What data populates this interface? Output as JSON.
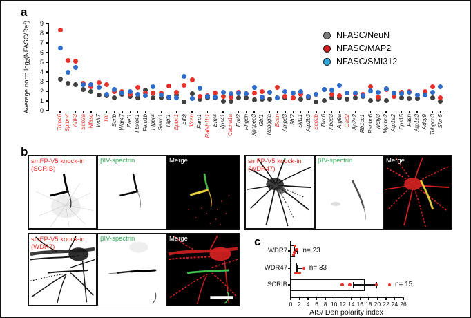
{
  "panels": {
    "a": "a",
    "b": "b",
    "c": "c"
  },
  "colors": {
    "dot_gray": "#404040",
    "dot_red": "#e8302a",
    "dot_blue": "#2d6ccb",
    "legend_gray": "#7d7d7d",
    "legend_red": "#cf1c1c",
    "legend_blue": "#35aadf",
    "label_red": "#e8302a",
    "label_green": "#2eae54",
    "merge_white": "#ffffff"
  },
  "chart_data": [
    {
      "type": "scatter",
      "ylabel_pre": "Average norm log",
      "ylabel_sub": "2",
      "ylabel_post": "(NFASC/Ref)",
      "ylim": [
        0,
        9
      ],
      "yticks": [
        0,
        1,
        2,
        3,
        4,
        5,
        6,
        7,
        8,
        9
      ],
      "categories": [
        "Trim46",
        "Sptbn4",
        "Ank3",
        "Scn2a",
        "Nfasc",
        "Wdr7",
        "Tnr",
        "Scrib",
        "Wdr47",
        "Zzef1",
        "Fbxo41",
        "Fem1b",
        "Plppr4",
        "Sarm1",
        "Tapt1",
        "Epb41",
        "Eif3j",
        "Vcan",
        "Farp1",
        "Pafah1b1",
        "Eml4",
        "Vps41",
        "Cacna1a",
        "Eml2",
        "Phgdh",
        "Xpnpep3",
        "Gbf1",
        "Rabggta",
        "Bcan",
        "Ampd3",
        "Sbf2",
        "Syt11",
        "Atp2b3",
        "Scn2b",
        "Birc6",
        "Abcd3",
        "Atg9a",
        "Gad2",
        "Ap2a2",
        "Rb1cc1",
        "Ranbp6",
        "Wdfy3",
        "Mycbp2",
        "Atp1a2",
        "Eps15",
        "Fasn",
        "Atp1a3",
        "Adcy9",
        "Tubgcp3",
        "Sfxn5"
      ],
      "red_categories": [
        "Trim46",
        "Sptbn4",
        "Ank3",
        "Scn2a",
        "Nfasc",
        "Tnr",
        "Epb41",
        "Vcan",
        "Pafah1b1",
        "Cacna1a",
        "Bcan",
        "Scn2b",
        "Gad2"
      ],
      "series": [
        {
          "name": "NFASC/NeuN",
          "color": "#404040",
          "values": [
            3.25,
            2.8,
            2.65,
            2.15,
            1.95,
            1.6,
            1.55,
            1.35,
            1.65,
            1.45,
            1.35,
            2.1,
            1.35,
            1.3,
            1.35,
            1.6,
            0.9,
            1.75,
            1.2,
            1.35,
            1.3,
            0.95,
            0.95,
            1.35,
            1.3,
            1.1,
            1.15,
            1.2,
            1.3,
            1.3,
            1.35,
            1.2,
            1.3,
            0.9,
            1.05,
            1.3,
            1.35,
            1.15,
            1.35,
            1.5,
            1.05,
            1.2,
            1.05,
            1.45,
            1.3,
            1.25,
            1.25,
            1.6,
            1.35,
            1.0
          ]
        },
        {
          "name": "NFASC/MAP2",
          "color": "#e8302a",
          "values": [
            8.3,
            5.2,
            5.1,
            2.85,
            2.45,
            2.9,
            2.65,
            1.95,
            2.0,
            1.7,
            2.4,
            1.85,
            1.8,
            1.85,
            2.55,
            1.9,
            2.6,
            3.2,
            1.45,
            1.55,
            1.85,
            1.5,
            1.4,
            1.9,
            1.75,
            1.8,
            1.95,
            1.9,
            2.4,
            1.5,
            1.35,
            1.7,
            1.5,
            1.7,
            2.15,
            1.7,
            1.55,
            1.8,
            1.75,
            1.7,
            2.5,
            1.4,
            2.2,
            1.45,
            1.9,
            1.95,
            1.6,
            1.95,
            2.5,
            1.3
          ]
        },
        {
          "name": "NFASC/SMI312",
          "color": "#2d6ccb",
          "values": [
            6.5,
            4.0,
            4.45,
            2.7,
            2.7,
            2.4,
            1.7,
            2.15,
            1.85,
            1.95,
            1.7,
            1.55,
            2.5,
            1.6,
            1.4,
            1.35,
            3.55,
            1.25,
            2.35,
            1.5,
            1.4,
            1.9,
            1.75,
            1.85,
            1.75,
            2.4,
            1.4,
            1.9,
            1.3,
            1.95,
            1.8,
            1.95,
            1.5,
            1.65,
            2.2,
            2.1,
            2.6,
            1.85,
            1.8,
            1.55,
            2.05,
            1.9,
            2.25,
            1.8,
            1.75,
            1.9,
            1.6,
            1.6,
            1.9,
            2.5
          ]
        }
      ],
      "legend": [
        {
          "label": "NFASC/NeuN",
          "color": "#7d7d7d"
        },
        {
          "label": "NFASC/MAP2",
          "color": "#cf1c1c"
        },
        {
          "label": "NFASC/SMI312",
          "color": "#35aadf"
        }
      ],
      "legend_position": "top-right",
      "grid": false
    },
    {
      "type": "bar",
      "orientation": "horizontal",
      "xlabel": "AIS/ Den polarity index",
      "xlim": [
        0,
        26
      ],
      "xticks": [
        0,
        2,
        4,
        6,
        8,
        10,
        12,
        14,
        16,
        18,
        20,
        22,
        24,
        26
      ],
      "point_color": "#e8302a",
      "rows": [
        {
          "label": "WDR7",
          "n": "n= 23",
          "bar": 0.9,
          "whisker": [
            0.9,
            1.5
          ],
          "points": [
            {
              "x": 0.95,
              "dy": -7
            },
            {
              "x": 1.4,
              "dy": -2
            },
            {
              "x": 0.9,
              "dy": 2
            },
            {
              "x": 0.65,
              "dy": 6
            }
          ]
        },
        {
          "label": "WDR47",
          "n": "n= 33",
          "bar": 1.5,
          "whisker": [
            1.5,
            2.6
          ],
          "points": [
            {
              "x": 1.2,
              "dy": 7
            },
            {
              "x": 2.0,
              "dy": 7
            },
            {
              "x": 3.0,
              "dy": 0
            }
          ]
        },
        {
          "label": "SCRIB",
          "n": "n= 15",
          "bar": 17.0,
          "whisker": [
            14.4,
            19.8
          ],
          "points": [
            {
              "x": 11.9,
              "dy": 0
            },
            {
              "x": 13.6,
              "dy": 0
            },
            {
              "x": 19.8,
              "dy": 0
            },
            {
              "x": 22.8,
              "dy": 0
            }
          ]
        }
      ]
    }
  ],
  "panel_b": {
    "groups": [
      {
        "knockin_line1": "smFP-V5 knock-in",
        "knockin_line2": "(SCRIB)",
        "spectrin": "βIV-spectrin",
        "merge": "Merge"
      },
      {
        "knockin_line1": "smFP-V5 knock-in",
        "knockin_line2": "(WDR47)",
        "spectrin": "βIV-spectrin",
        "merge": "Merge"
      },
      {
        "knockin_line1": "smFP-V5 knock-in",
        "knockin_line2": "(WDR7)",
        "spectrin": "βIV-spectrin",
        "merge": "Merge"
      }
    ]
  }
}
